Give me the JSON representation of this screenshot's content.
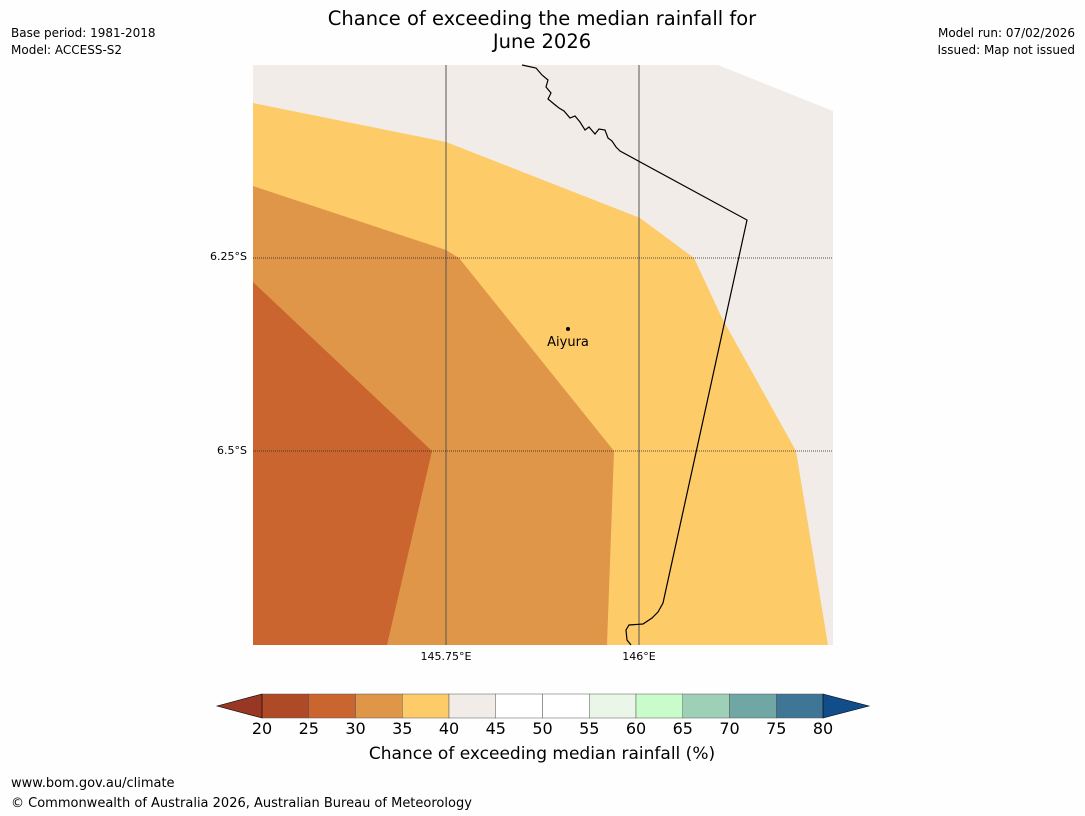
{
  "header": {
    "title_line1": "Chance of exceeding the median rainfall for",
    "title_line2": "June 2026",
    "base_period": "Base period: 1981-2018",
    "model": "Model: ACCESS-S2",
    "model_run": "Model run: 07/02/2026",
    "issued": "Issued: Map not issued"
  },
  "map": {
    "place_name": "Aiyura",
    "lat_labels": [
      "6.25°S",
      "6.5°S"
    ],
    "lon_labels": [
      "145.75°E",
      "146°E"
    ],
    "region_colors": {
      "bg": "#f1ece7",
      "35_40": "#fecb69",
      "30_35": "#e09649",
      "25_30": "#cb6530"
    }
  },
  "colorbar": {
    "ticks": [
      "20",
      "25",
      "30",
      "35",
      "40",
      "45",
      "50",
      "55",
      "60",
      "65",
      "70",
      "75",
      "80"
    ],
    "colors": [
      "#ae4a25",
      "#cb6530",
      "#e09649",
      "#fecb69",
      "#f1ece7",
      "#ffffff",
      "#ffffff",
      "#eaf6e8",
      "#c9fbcb",
      "#9ed0b7",
      "#70a7a5",
      "#3f7696"
    ],
    "under_color": "#983723",
    "over_color": "#114d8b",
    "label": "Chance of exceeding median rainfall (%)"
  },
  "footer": {
    "url": "www.bom.gov.au/climate",
    "copyright": "© Commonwealth of Australia 2026, Australian Bureau of Meteorology"
  }
}
